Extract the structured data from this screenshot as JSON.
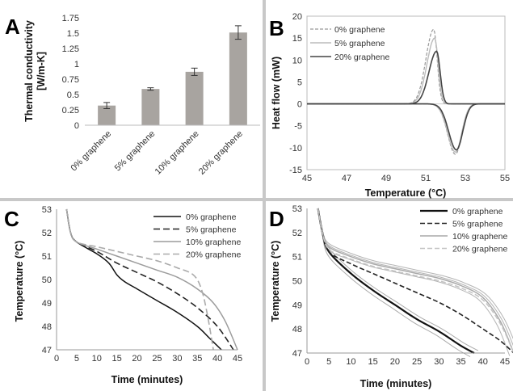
{
  "colors": {
    "bar": "#a8a4a0",
    "s0": "#999999",
    "s5": "#bbbbbb",
    "s10": "#9c9c9c",
    "s20": "#444444",
    "black": "#111111",
    "gray20": "#aaaaaa",
    "divider": "#c8c8c8"
  },
  "chart_data": [
    {
      "panel": "A",
      "type": "bar",
      "ylabel": "Thermal conductivity\n[W/m-K]",
      "categories": [
        "0% graphene",
        "5% graphene",
        "10% graphene",
        "20% graphene"
      ],
      "values": [
        0.32,
        0.59,
        0.87,
        1.51
      ],
      "errors": [
        0.05,
        0.02,
        0.06,
        0.11
      ],
      "ylim": [
        0,
        1.75
      ],
      "yticks": [
        "0",
        "0.25",
        "0.5",
        "0.75",
        "1",
        "1.25",
        "1.5",
        "1.75"
      ]
    },
    {
      "panel": "B",
      "type": "line",
      "xlabel": "Temperature (°C)",
      "ylabel": "Heat flow (mW)",
      "xlim": [
        45,
        55
      ],
      "ylim": [
        -15,
        20
      ],
      "xticks": [
        "45",
        "47",
        "49",
        "51",
        "53",
        "55"
      ],
      "yticks": [
        "-15",
        "-10",
        "-5",
        "0",
        "5",
        "10",
        "15",
        "20"
      ],
      "legend_position": "top-left",
      "series": [
        {
          "name": "0% graphene",
          "style": "dashed",
          "melt_peak": [
            51.4,
            17
          ],
          "freeze_peak": [
            52.5,
            -11.5
          ]
        },
        {
          "name": "5% graphene",
          "style": "solid-light",
          "melt_peak": [
            51.45,
            15
          ],
          "freeze_peak": [
            52.5,
            -11
          ]
        },
        {
          "name": "20% graphene",
          "style": "solid-dark",
          "melt_peak": [
            51.55,
            12
          ],
          "freeze_peak": [
            52.55,
            -10.5
          ]
        }
      ]
    },
    {
      "panel": "C",
      "type": "line",
      "xlabel": "Time (minutes)",
      "ylabel": "Temperature (°C)",
      "xlim": [
        0,
        45
      ],
      "ylim": [
        47,
        53
      ],
      "xticks": [
        "0",
        "5",
        "10",
        "15",
        "20",
        "25",
        "30",
        "35",
        "40",
        "45"
      ],
      "yticks": [
        "47",
        "48",
        "49",
        "50",
        "51",
        "52",
        "53"
      ],
      "legend_position": "top-right",
      "series": [
        {
          "name": "0% graphene",
          "style": "solid-black",
          "x": [
            2.5,
            3.5,
            5,
            10,
            13,
            15,
            17,
            20,
            25,
            30,
            35,
            38,
            41
          ],
          "y": [
            53,
            52,
            51.6,
            51.1,
            50.7,
            50.2,
            49.9,
            49.6,
            49.1,
            48.6,
            48.0,
            47.5,
            47
          ]
        },
        {
          "name": "5% graphene",
          "style": "dashed-black",
          "x": [
            2.5,
            3.5,
            5,
            10,
            15,
            20,
            25,
            30,
            35,
            40,
            44
          ],
          "y": [
            53,
            52,
            51.6,
            51.2,
            50.7,
            50.3,
            49.9,
            49.4,
            48.8,
            48.0,
            47
          ]
        },
        {
          "name": "10% graphene",
          "style": "solid-gray",
          "x": [
            2.5,
            3.5,
            5,
            10,
            15,
            20,
            25,
            30,
            35,
            39,
            42,
            45
          ],
          "y": [
            53,
            52,
            51.6,
            51.3,
            51.0,
            50.7,
            50.4,
            50.1,
            49.6,
            49.0,
            48.2,
            47
          ]
        },
        {
          "name": "20% graphene",
          "style": "dashed-gray",
          "x": [
            2.5,
            3.5,
            5,
            10,
            15,
            20,
            25,
            30,
            34,
            36,
            37.5,
            39
          ],
          "y": [
            53,
            52,
            51.6,
            51.4,
            51.2,
            51.0,
            50.8,
            50.5,
            50.2,
            49.6,
            48.5,
            47
          ]
        }
      ]
    },
    {
      "panel": "D",
      "type": "line",
      "xlabel": "Time (minutes)",
      "ylabel": "Temperature (°C)",
      "xlim": [
        0,
        45
      ],
      "ylim": [
        47,
        53
      ],
      "xticks": [
        "0",
        "5",
        "10",
        "15",
        "20",
        "25",
        "30",
        "35",
        "40",
        "45"
      ],
      "yticks": [
        "47",
        "48",
        "49",
        "50",
        "51",
        "52",
        "53"
      ],
      "legend_position": "top-right",
      "series": [
        {
          "name": "0% graphene",
          "style": "solid-black-thick",
          "x": [
            2.5,
            3.5,
            5,
            10,
            15,
            20,
            25,
            30,
            35,
            38
          ],
          "y": [
            53,
            52,
            51.2,
            50.3,
            49.6,
            49.0,
            48.4,
            47.9,
            47.3,
            47
          ]
        },
        {
          "name": "5% graphene",
          "style": "dashed-black",
          "x": [
            2.5,
            3.5,
            5,
            10,
            15,
            20,
            25,
            30,
            35,
            40,
            44,
            47
          ],
          "y": [
            53,
            52,
            51.2,
            50.7,
            50.3,
            49.9,
            49.5,
            49.1,
            48.6,
            48.0,
            47.5,
            47
          ]
        },
        {
          "name": "10% graphene",
          "style": "solid-gray",
          "x": [
            2.5,
            3.5,
            5,
            10,
            15,
            20,
            25,
            30,
            35,
            40,
            44,
            47
          ],
          "y": [
            53,
            52,
            51.4,
            51.0,
            50.7,
            50.5,
            50.3,
            50.1,
            49.8,
            49.3,
            48.3,
            47
          ]
        },
        {
          "name": "20% graphene",
          "style": "dashed-lightgray",
          "x": [
            2.5,
            3.5,
            5,
            10,
            15,
            20,
            25,
            30,
            35,
            40,
            44,
            47
          ],
          "y": [
            53,
            52,
            51.3,
            50.9,
            50.6,
            50.4,
            50.2,
            50.0,
            49.7,
            49.2,
            48.2,
            47
          ]
        }
      ]
    }
  ]
}
